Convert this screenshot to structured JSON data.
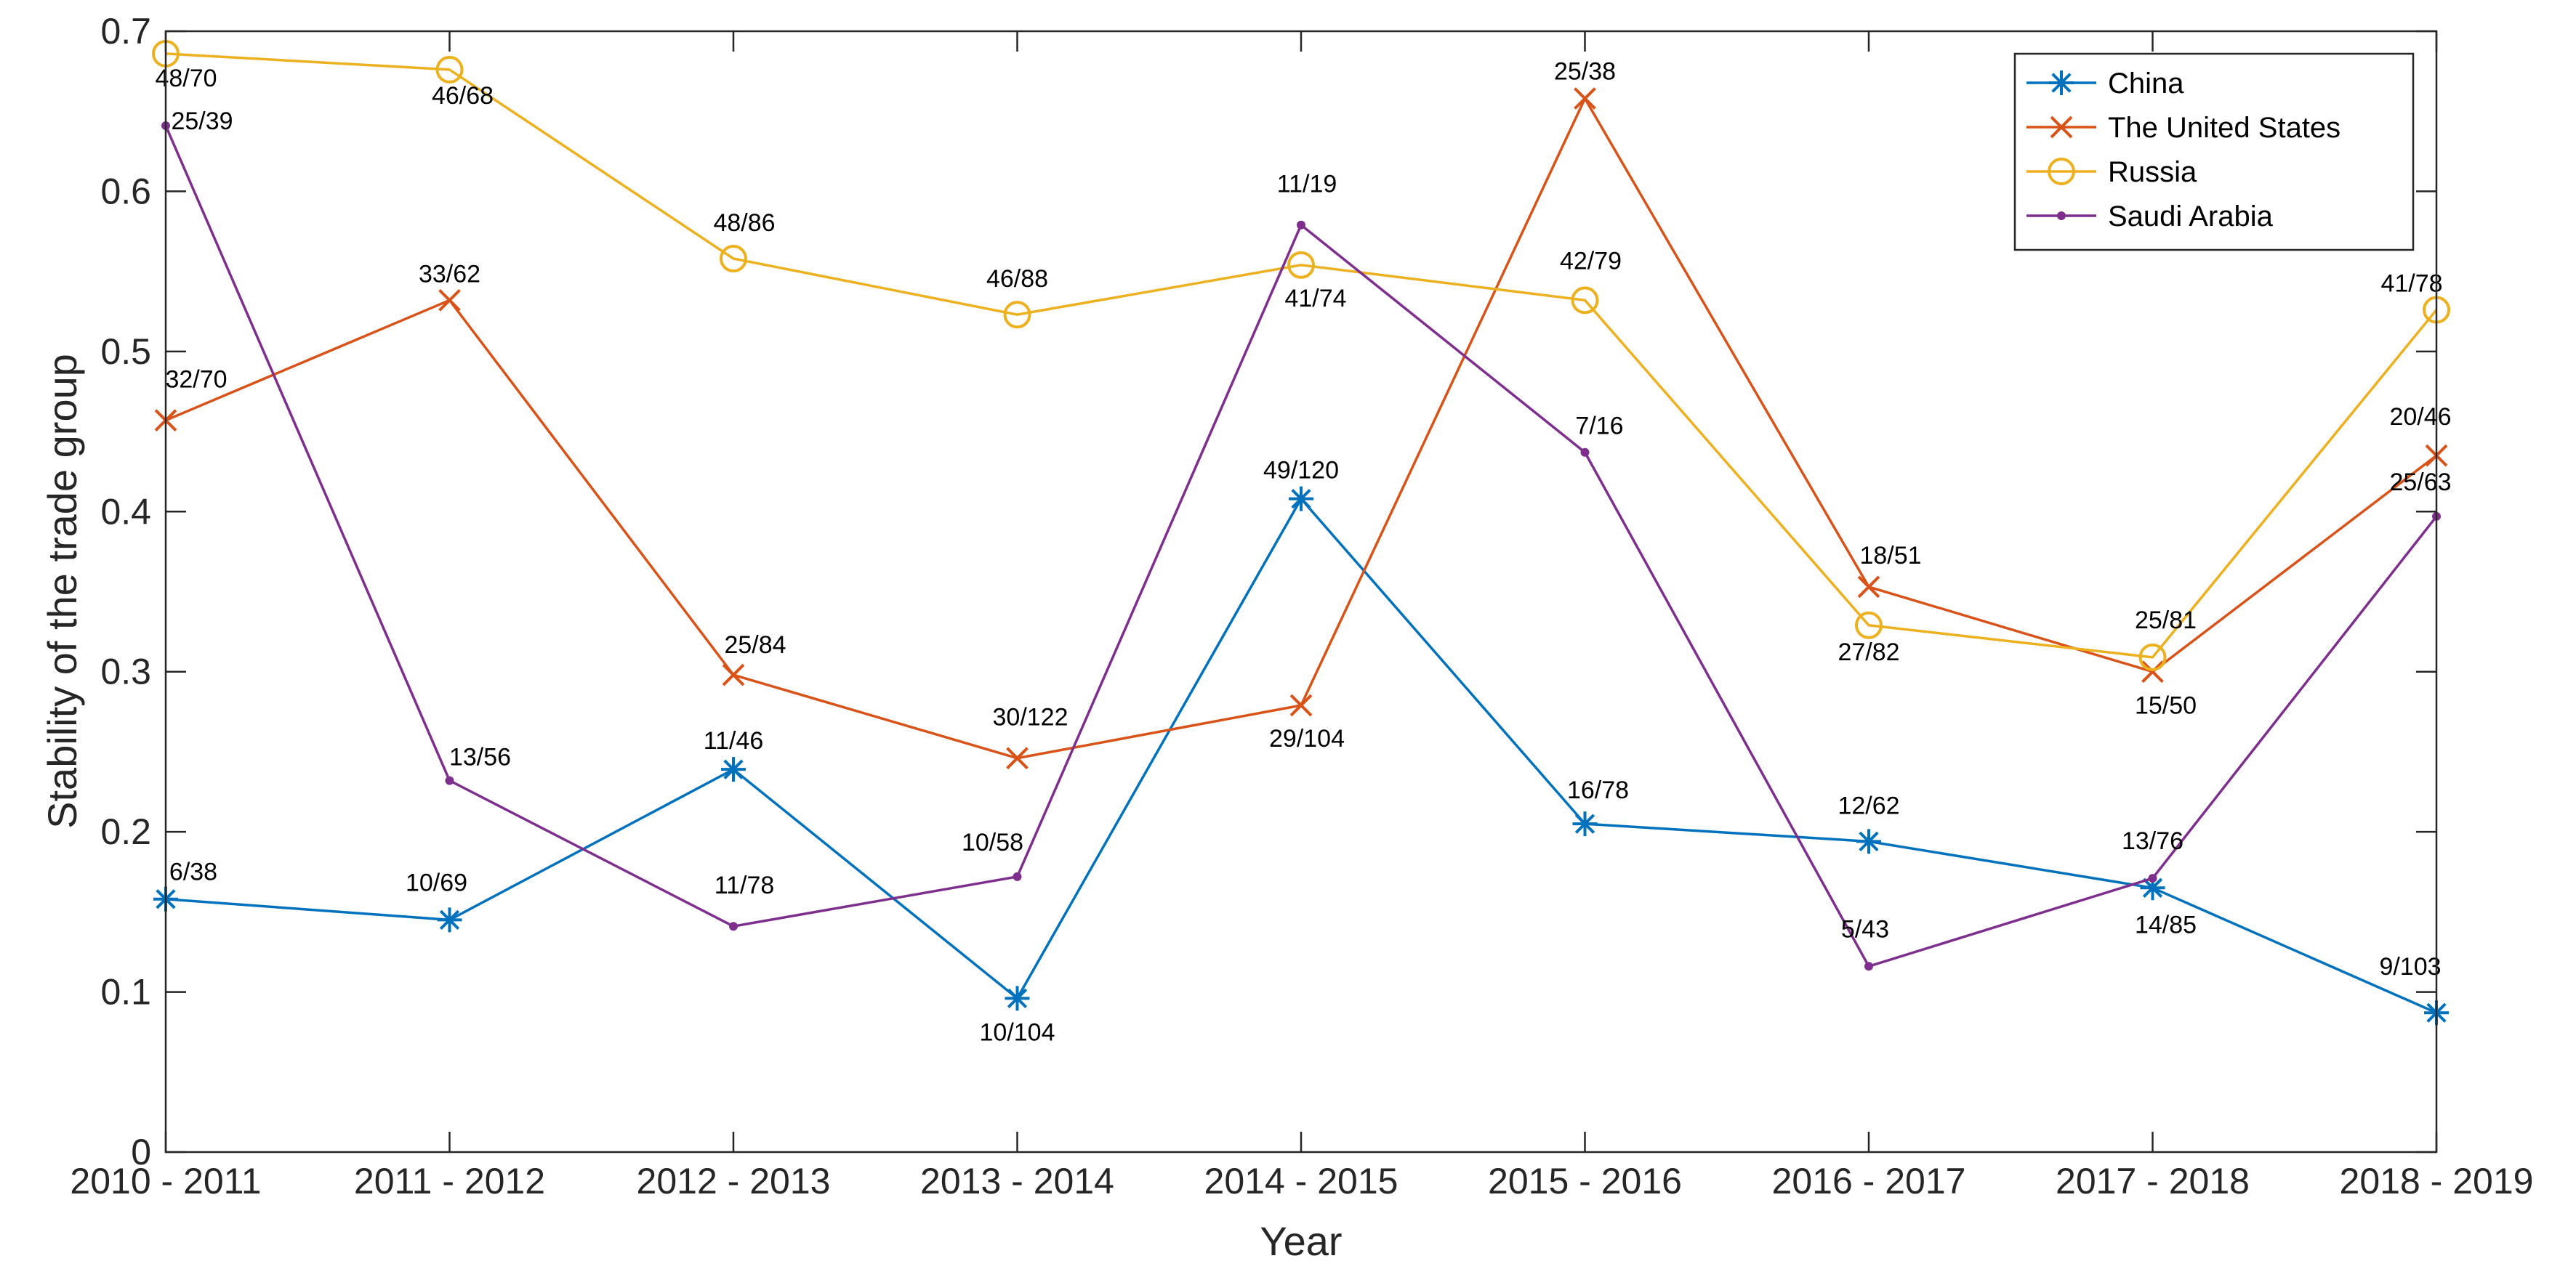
{
  "chart_data": {
    "type": "line",
    "title": "",
    "xlabel": "Year",
    "ylabel": "Stability of the trade group",
    "categories": [
      "2010 - 2011",
      "2011 - 2012",
      "2012 - 2013",
      "2013 - 2014",
      "2014 - 2015",
      "2015 - 2016",
      "2016 - 2017",
      "2017 - 2018",
      "2018 - 2019"
    ],
    "ylim": [
      0,
      0.7
    ],
    "yticks": [
      "0",
      "0.1",
      "0.2",
      "0.3",
      "0.4",
      "0.5",
      "0.6",
      "0.7"
    ],
    "grid": false,
    "legend_position": "top-right",
    "series": [
      {
        "name": "China",
        "color": "#0072BD",
        "marker": "asterisk",
        "values": [
          0.158,
          0.145,
          0.239,
          0.096,
          0.408,
          0.205,
          0.194,
          0.165,
          0.087
        ],
        "labels": [
          "6/38",
          "10/69",
          "11/46",
          "10/104",
          "49/120",
          "16/78",
          "12/62",
          "14/85",
          "9/103"
        ]
      },
      {
        "name": "The United States",
        "color": "#D95319",
        "marker": "x",
        "values": [
          0.457,
          0.532,
          0.298,
          0.246,
          0.279,
          0.658,
          0.353,
          0.3,
          0.435
        ],
        "labels": [
          "32/70",
          "33/62",
          "25/84",
          "30/122",
          "29/104",
          "25/38",
          "18/51",
          "15/50",
          "20/46"
        ]
      },
      {
        "name": "Russia",
        "color": "#EDB120",
        "marker": "circle",
        "values": [
          0.686,
          0.676,
          0.558,
          0.523,
          0.554,
          0.532,
          0.329,
          0.309,
          0.526
        ],
        "labels": [
          "48/70",
          "46/68",
          "48/86",
          "46/88",
          "41/74",
          "42/79",
          "27/82",
          "25/81",
          "41/78"
        ]
      },
      {
        "name": "Saudi Arabia",
        "color": "#7E2F8E",
        "marker": "point",
        "values": [
          0.641,
          0.232,
          0.141,
          0.172,
          0.579,
          0.437,
          0.116,
          0.171,
          0.397
        ],
        "labels": [
          "25/39",
          "13/56",
          "11/78",
          "10/58",
          "11/19",
          "7/16",
          "5/43",
          "13/76",
          "25/63"
        ]
      }
    ]
  }
}
